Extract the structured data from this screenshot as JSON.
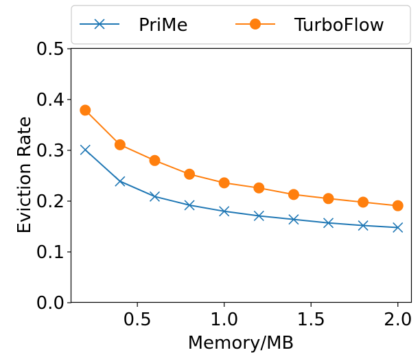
{
  "chart_data": {
    "type": "line",
    "xlabel": "Memory/MB",
    "ylabel": "Eviction Rate",
    "xlim": [
      0.12,
      2.08
    ],
    "ylim": [
      0.0,
      0.5
    ],
    "x_ticks": [
      "0.5",
      "1.0",
      "1.5",
      "2.0"
    ],
    "y_ticks": [
      "0.0",
      "0.1",
      "0.2",
      "0.3",
      "0.4",
      "0.5"
    ],
    "x_tick_values": [
      0.5,
      1.0,
      1.5,
      2.0
    ],
    "y_tick_values": [
      0.0,
      0.1,
      0.2,
      0.3,
      0.4,
      0.5
    ],
    "x": [
      0.2,
      0.4,
      0.6,
      0.8,
      1.0,
      1.2,
      1.4,
      1.6,
      1.8,
      2.0
    ],
    "series": [
      {
        "name": "PriMe",
        "marker": "x",
        "color": "#1f77b4",
        "values": [
          0.301,
          0.239,
          0.209,
          0.192,
          0.18,
          0.171,
          0.164,
          0.157,
          0.152,
          0.148
        ]
      },
      {
        "name": "TurboFlow",
        "marker": "circle",
        "color": "#ff7f0e",
        "values": [
          0.379,
          0.311,
          0.28,
          0.253,
          0.236,
          0.226,
          0.213,
          0.205,
          0.198,
          0.191
        ]
      }
    ],
    "legend_position": "top, outside the axes",
    "grid": false
  }
}
